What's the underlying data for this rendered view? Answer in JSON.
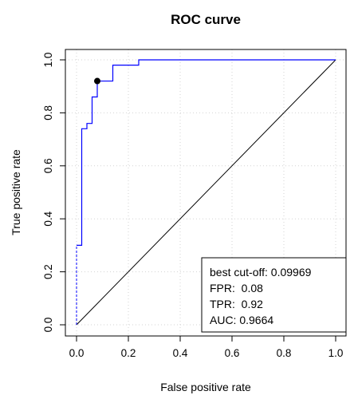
{
  "chart_data": {
    "type": "line",
    "title": "ROC curve",
    "xlabel": "False positive rate",
    "ylabel": "True positive rate",
    "xlim": [
      0,
      1
    ],
    "ylim": [
      0,
      1
    ],
    "xticks": [
      "0.0",
      "0.2",
      "0.4",
      "0.6",
      "0.8",
      "1.0"
    ],
    "yticks": [
      "0.0",
      "0.2",
      "0.4",
      "0.6",
      "0.8",
      "1.0"
    ],
    "grid": true,
    "series": [
      {
        "color": "#0000ff",
        "x": [
          0,
          0.02,
          0.02,
          0.02,
          0.04,
          0.04,
          0.06,
          0.06,
          0.08,
          0.08,
          0.14,
          0.14,
          0.24,
          0.24,
          1.0
        ],
        "y": [
          0.3,
          0.3,
          0.42,
          0.74,
          0.74,
          0.76,
          0.76,
          0.86,
          0.86,
          0.92,
          0.92,
          0.98,
          0.98,
          1.0,
          1.0
        ]
      }
    ],
    "dashed_segments": [
      {
        "x": [
          0,
          0
        ],
        "y": [
          0,
          0.3
        ],
        "color": "#0000ff"
      },
      {
        "x": [
          0.02,
          0.02
        ],
        "y": [
          0.3,
          0.42
        ],
        "color": "#0000ff"
      }
    ],
    "reference_line": {
      "x": [
        0,
        1
      ],
      "y": [
        0,
        1
      ],
      "color": "#000000"
    },
    "cutoff_point": {
      "x": 0.08,
      "y": 0.92
    },
    "legend": {
      "position": "bottom-right",
      "lines": [
        "best cut-off: 0.09969",
        "FPR:  0.08",
        "TPR:  0.92",
        "AUC: 0.9664"
      ]
    }
  }
}
